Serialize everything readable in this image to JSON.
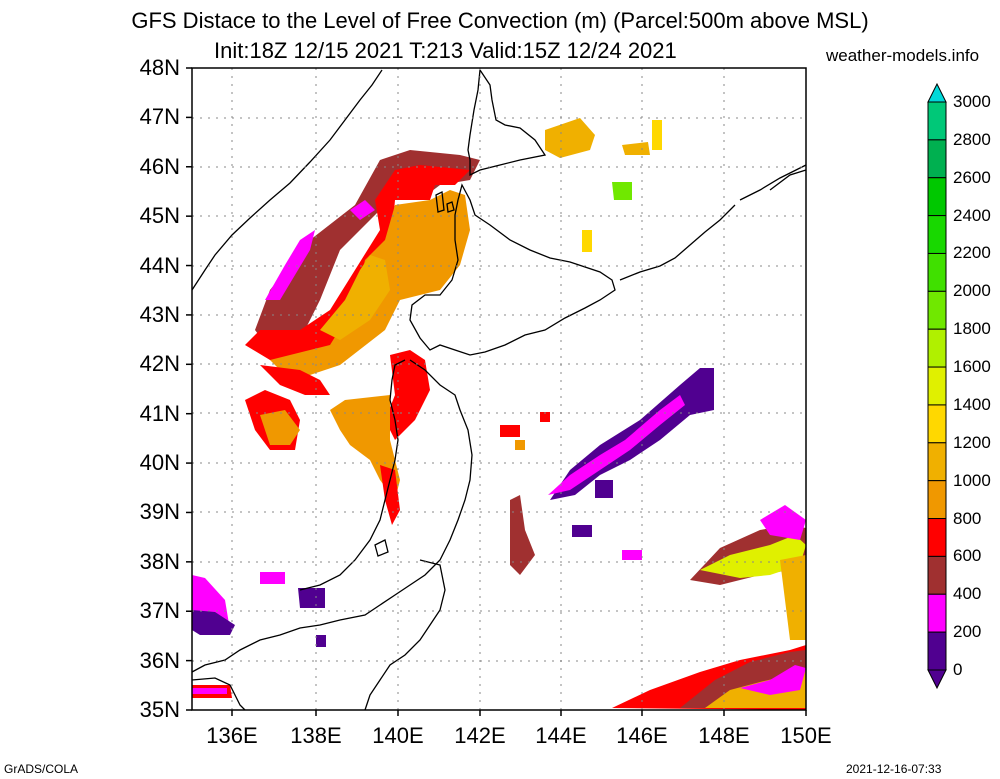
{
  "title": {
    "line1": "GFS Distace to the Level of Free Convection (m) (Parcel:500m above MSL)",
    "line2": "Init:18Z 12/15 2021 T:213 Valid:15Z 12/24 2021",
    "site": "weather-models.info"
  },
  "axes": {
    "lat_labels": [
      "48N",
      "47N",
      "46N",
      "45N",
      "44N",
      "43N",
      "42N",
      "41N",
      "40N",
      "39N",
      "38N",
      "37N",
      "36N",
      "35N"
    ],
    "lon_labels": [
      "136E",
      "138E",
      "140E",
      "142E",
      "144E",
      "146E",
      "148E",
      "150E"
    ],
    "lat_range": [
      35,
      48
    ],
    "lon_range": [
      135,
      150
    ]
  },
  "colorbar": {
    "labels": [
      "3000",
      "2800",
      "2600",
      "2400",
      "2200",
      "2000",
      "1800",
      "1600",
      "1400",
      "1200",
      "1000",
      "800",
      "600",
      "400",
      "200",
      "0"
    ],
    "colors": [
      "#00d8d8",
      "#00c878",
      "#00b050",
      "#00c800",
      "#18d800",
      "#40e000",
      "#70e800",
      "#b0f000",
      "#e0f000",
      "#ffd800",
      "#f0b000",
      "#f09800",
      "#ff0000",
      "#a03030",
      "#ff00ff",
      "#500090"
    ]
  },
  "footer": {
    "left": "GrADS/COLA",
    "right": "2021-12-16-07:33"
  }
}
